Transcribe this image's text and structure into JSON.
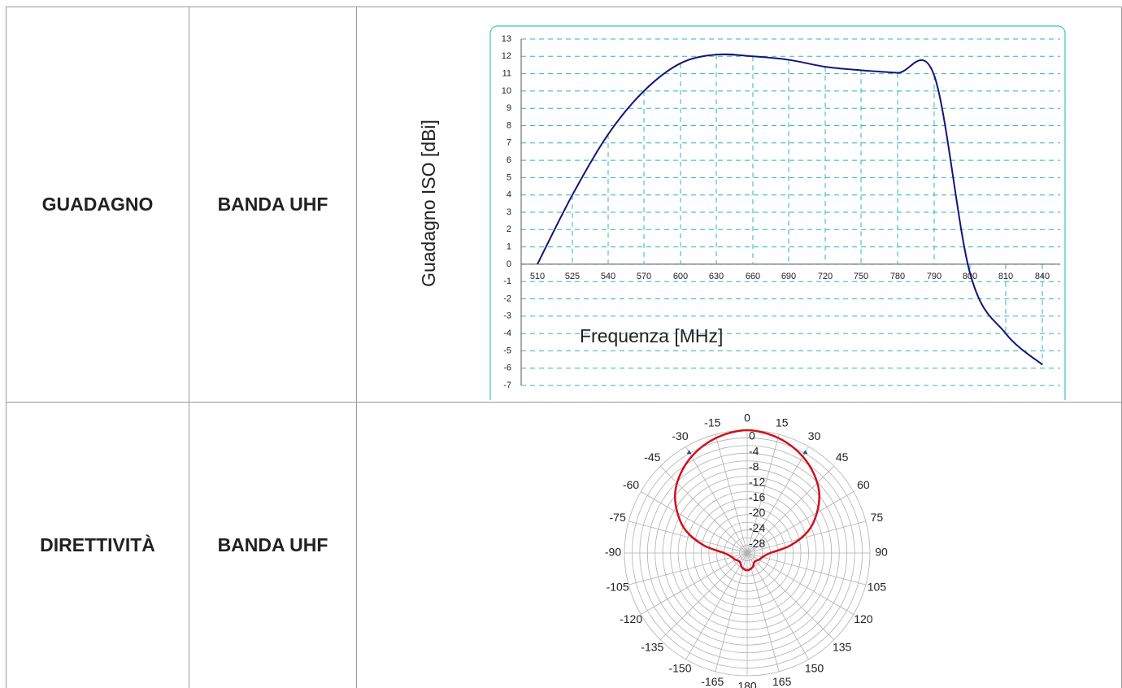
{
  "rows": [
    {
      "param": "GUADAGNO",
      "band": "BANDA UHF"
    },
    {
      "param": "DIRETTIVITÀ",
      "band": "BANDA UHF"
    }
  ],
  "chart_data": [
    {
      "type": "line",
      "ylabel": "Guadagno ISO [dBi]",
      "xlabel": "Frequenza [MHz]",
      "ylim": [
        -7,
        13
      ],
      "yticks": [
        13,
        12,
        11,
        10,
        9,
        8,
        7,
        6,
        5,
        4,
        3,
        2,
        1,
        0,
        -1,
        -2,
        -3,
        -4,
        -5,
        -6,
        -7
      ],
      "categories": [
        "510",
        "525",
        "540",
        "570",
        "600",
        "630",
        "660",
        "690",
        "720",
        "750",
        "780",
        "790",
        "800",
        "810",
        "840"
      ],
      "grid": true,
      "colors": {
        "line": "#14147a",
        "grid": "#2bb5b5",
        "border": "#3ec2c2"
      },
      "series": [
        {
          "values": [
            0,
            4,
            7.5,
            10,
            11.6,
            12.1,
            12.0,
            11.8,
            11.4,
            11.2,
            11.05,
            10.9,
            -0.5,
            -4,
            -5.8
          ]
        }
      ]
    },
    {
      "type": "polar",
      "angle_labels": [
        "0",
        "15",
        "30",
        "45",
        "60",
        "75",
        "90",
        "105",
        "120",
        "135",
        "150",
        "165",
        "180",
        "-165",
        "-150",
        "-135",
        "-120",
        "-105",
        "-90",
        "-75",
        "-60",
        "-45",
        "-30",
        "-15"
      ],
      "radial_labels": [
        "0",
        "-4",
        "-8",
        "-12",
        "-16",
        "-20",
        "-24",
        "-28"
      ],
      "colors": {
        "pattern": "#d0101c",
        "grid": "#b0b0b0",
        "marker": "#2a4aa8"
      },
      "pattern_angles": [
        0,
        10,
        20,
        30,
        40,
        50,
        60,
        70,
        80,
        90,
        100,
        120,
        140,
        160,
        180,
        -160,
        -140,
        -120,
        -100,
        -90,
        -80,
        -70,
        -60,
        -50,
        -40,
        -30,
        -20,
        -10
      ],
      "pattern_values": [
        0,
        -0.5,
        -1.5,
        -3,
        -5,
        -7.5,
        -11,
        -15,
        -20.5,
        -26,
        -27.5,
        -28.5,
        -29,
        -28,
        -27.5,
        -28,
        -29,
        -28.5,
        -27.5,
        -26,
        -20.5,
        -15,
        -11,
        -7.5,
        -5,
        -3,
        -1.5,
        -0.5
      ],
      "marker_angles": [
        -30,
        30
      ],
      "marker_value": -3
    }
  ]
}
